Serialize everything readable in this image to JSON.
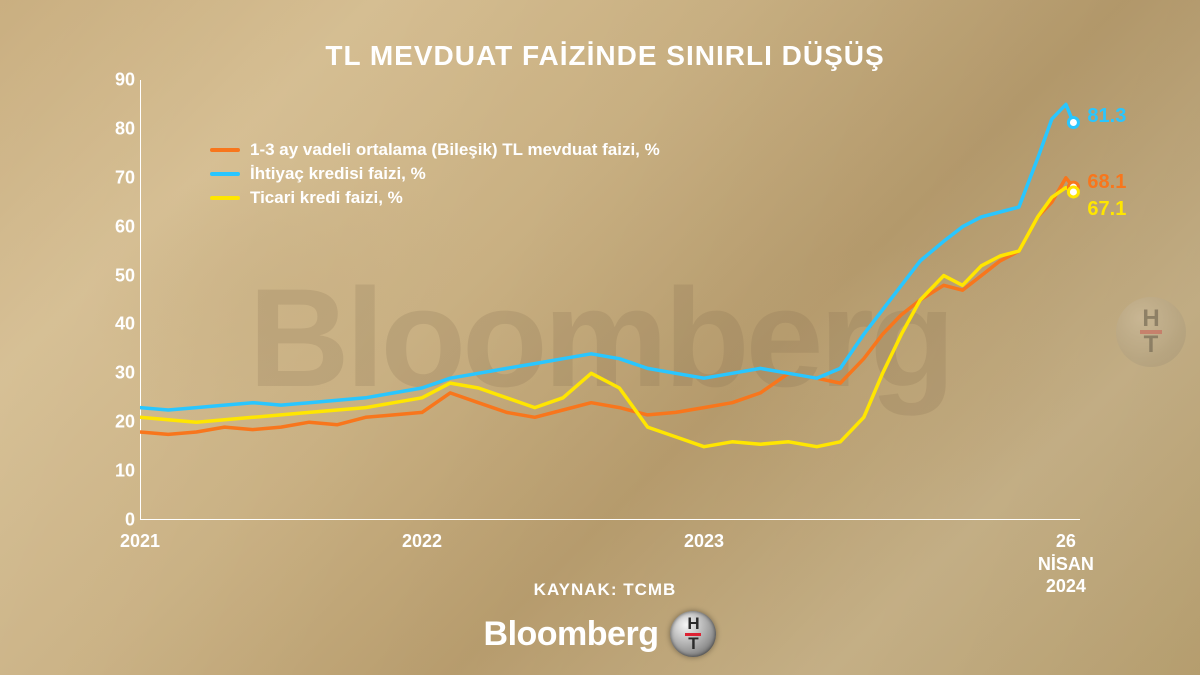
{
  "watermark": "Bloomberg",
  "footer_brand": "Bloomberg",
  "chart": {
    "type": "line",
    "title": "TL MEVDUAT FAİZİNDE SINIRLI DÜŞÜŞ",
    "title_fontsize": 28,
    "title_color": "#ffffff",
    "source": "KAYNAK: TCMB",
    "background_color": "transparent",
    "axis_color": "#ffffff",
    "label_fontsize": 18,
    "line_width": 3.5,
    "ylim": [
      0,
      90
    ],
    "ytick_step": 10,
    "yticks": [
      0,
      10,
      20,
      30,
      40,
      50,
      60,
      70,
      80,
      90
    ],
    "xticks": [
      {
        "t": 0.0,
        "label": "2021"
      },
      {
        "t": 0.3,
        "label": "2022"
      },
      {
        "t": 0.6,
        "label": "2023"
      },
      {
        "t": 0.985,
        "label": "26 NİSAN\n2024"
      }
    ],
    "legend": {
      "position": "upper-left-inset",
      "items": [
        {
          "color": "#f8761c",
          "label": "1-3 ay vadeli ortalama (Bileşik) TL mevduat faizi, %"
        },
        {
          "color": "#29c6ff",
          "label": "İhtiyaç kredisi faizi, %"
        },
        {
          "color": "#ffe600",
          "label": "Ticari kredi faizi, %"
        }
      ]
    },
    "series": [
      {
        "name": "deposit",
        "color": "#f8761c",
        "end_value_label": "68.1",
        "end_dot_color": "#ffffff",
        "points": [
          [
            0.0,
            18
          ],
          [
            0.03,
            17.5
          ],
          [
            0.06,
            18
          ],
          [
            0.09,
            19
          ],
          [
            0.12,
            18.5
          ],
          [
            0.15,
            19
          ],
          [
            0.18,
            20
          ],
          [
            0.21,
            19.5
          ],
          [
            0.24,
            21
          ],
          [
            0.27,
            21.5
          ],
          [
            0.3,
            22
          ],
          [
            0.33,
            26
          ],
          [
            0.36,
            24
          ],
          [
            0.39,
            22
          ],
          [
            0.42,
            21
          ],
          [
            0.45,
            22.5
          ],
          [
            0.48,
            24
          ],
          [
            0.51,
            23
          ],
          [
            0.54,
            21.5
          ],
          [
            0.57,
            22
          ],
          [
            0.6,
            23
          ],
          [
            0.63,
            24
          ],
          [
            0.66,
            26
          ],
          [
            0.69,
            30
          ],
          [
            0.72,
            29
          ],
          [
            0.745,
            28
          ],
          [
            0.77,
            33
          ],
          [
            0.79,
            38
          ],
          [
            0.81,
            42
          ],
          [
            0.83,
            45
          ],
          [
            0.855,
            48
          ],
          [
            0.875,
            47
          ],
          [
            0.895,
            50
          ],
          [
            0.915,
            53
          ],
          [
            0.935,
            55
          ],
          [
            0.955,
            62
          ],
          [
            0.97,
            65
          ],
          [
            0.985,
            70
          ],
          [
            0.993,
            68.1
          ]
        ]
      },
      {
        "name": "consumer_loan",
        "color": "#29c6ff",
        "end_value_label": "81.3",
        "end_dot_color": "#ffffff",
        "points": [
          [
            0.0,
            23
          ],
          [
            0.03,
            22.5
          ],
          [
            0.06,
            23
          ],
          [
            0.09,
            23.5
          ],
          [
            0.12,
            24
          ],
          [
            0.15,
            23.5
          ],
          [
            0.18,
            24
          ],
          [
            0.21,
            24.5
          ],
          [
            0.24,
            25
          ],
          [
            0.27,
            26
          ],
          [
            0.3,
            27
          ],
          [
            0.33,
            29
          ],
          [
            0.36,
            30
          ],
          [
            0.39,
            31
          ],
          [
            0.42,
            32
          ],
          [
            0.45,
            33
          ],
          [
            0.48,
            34
          ],
          [
            0.51,
            33
          ],
          [
            0.54,
            31
          ],
          [
            0.57,
            30
          ],
          [
            0.6,
            29
          ],
          [
            0.63,
            30
          ],
          [
            0.66,
            31
          ],
          [
            0.69,
            30
          ],
          [
            0.72,
            29
          ],
          [
            0.745,
            31
          ],
          [
            0.77,
            38
          ],
          [
            0.79,
            43
          ],
          [
            0.81,
            48
          ],
          [
            0.83,
            53
          ],
          [
            0.855,
            57
          ],
          [
            0.875,
            60
          ],
          [
            0.895,
            62
          ],
          [
            0.915,
            63
          ],
          [
            0.935,
            64
          ],
          [
            0.955,
            74
          ],
          [
            0.97,
            82
          ],
          [
            0.985,
            85
          ],
          [
            0.993,
            81.3
          ]
        ]
      },
      {
        "name": "commercial_loan",
        "color": "#ffe600",
        "end_value_label": "67.1",
        "end_dot_color": "#ffffff",
        "points": [
          [
            0.0,
            21
          ],
          [
            0.03,
            20.5
          ],
          [
            0.06,
            20
          ],
          [
            0.09,
            20.5
          ],
          [
            0.12,
            21
          ],
          [
            0.15,
            21.5
          ],
          [
            0.18,
            22
          ],
          [
            0.21,
            22.5
          ],
          [
            0.24,
            23
          ],
          [
            0.27,
            24
          ],
          [
            0.3,
            25
          ],
          [
            0.33,
            28
          ],
          [
            0.36,
            27
          ],
          [
            0.39,
            25
          ],
          [
            0.42,
            23
          ],
          [
            0.45,
            25
          ],
          [
            0.48,
            30
          ],
          [
            0.51,
            27
          ],
          [
            0.54,
            19
          ],
          [
            0.57,
            17
          ],
          [
            0.6,
            15
          ],
          [
            0.63,
            16
          ],
          [
            0.66,
            15.5
          ],
          [
            0.69,
            16
          ],
          [
            0.72,
            15
          ],
          [
            0.745,
            16
          ],
          [
            0.77,
            21
          ],
          [
            0.79,
            30
          ],
          [
            0.81,
            38
          ],
          [
            0.83,
            45
          ],
          [
            0.855,
            50
          ],
          [
            0.875,
            48
          ],
          [
            0.895,
            52
          ],
          [
            0.915,
            54
          ],
          [
            0.935,
            55
          ],
          [
            0.955,
            62
          ],
          [
            0.97,
            66
          ],
          [
            0.985,
            68
          ],
          [
            0.993,
            67.1
          ]
        ]
      }
    ],
    "endpoint_labels": [
      {
        "series": "consumer_loan",
        "text": "81.3",
        "color": "#29c6ff",
        "y_offset": -6
      },
      {
        "series": "deposit",
        "text": "68.1",
        "color": "#f8761c",
        "y_offset": -4
      },
      {
        "series": "commercial_loan",
        "text": "67.1",
        "color": "#ffe600",
        "y_offset": 18
      }
    ]
  }
}
